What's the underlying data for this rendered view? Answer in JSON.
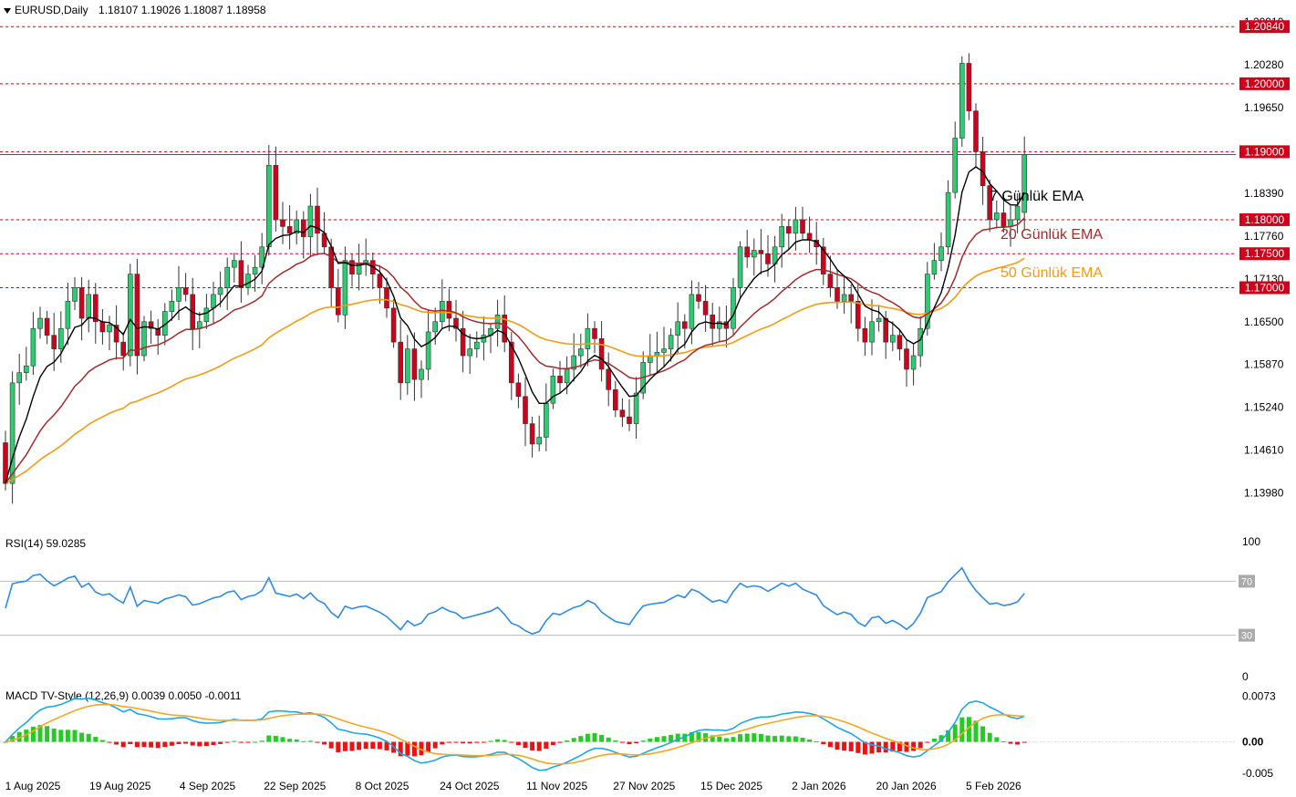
{
  "header": {
    "symbol": "EURUSD,Daily",
    "ohlc": "1.18107 1.19026 1.18087 1.18958",
    "rsi_title": "RSI(14) 59.0285",
    "macd_title": "MACD TV-Style (12,26,9) 0.0039 0.0050 -0.0011"
  },
  "colors": {
    "bull": "#2ECC71",
    "bear": "#D0021B",
    "ema7": "#000000",
    "ema20": "#A52A2A",
    "ema50": "#F39C12",
    "rsi": "#2E8BE6",
    "macd": "#1EA7E8",
    "signal": "#F5A623",
    "level": "#D0021B"
  },
  "chart_data": [
    {
      "type": "candlestick",
      "price_ticks": [
        "1.20910",
        "1.20280",
        "1.19650",
        "1.18390",
        "1.17760",
        "1.17130",
        "1.16500",
        "1.15870",
        "1.15240",
        "1.14610",
        "1.13980"
      ],
      "ylim": [
        1.1368,
        1.2091
      ],
      "x_tick_labels": [
        "1 Aug 2025",
        "19 Aug 2025",
        "4 Sep 2025",
        "22 Sep 2025",
        "8 Oct 2025",
        "24 Oct 2025",
        "11 Nov 2025",
        "27 Nov 2025",
        "15 Dec 2025",
        "2 Jan 2026",
        "20 Jan 2026",
        "5 Feb 2026"
      ],
      "level_labels": [
        "1.20840",
        "1.20000",
        "1.19000",
        "1.18000",
        "1.17500",
        "1.17000"
      ],
      "levels": [
        1.2084,
        1.2,
        1.19,
        1.18,
        1.175,
        1.17
      ],
      "current_price": 1.18958,
      "annotations": [
        "7 Günlük EMA",
        "20 Günlük EMA",
        "50 Günlük EMA"
      ],
      "closes": [
        1.1412,
        1.156,
        1.1575,
        1.1585,
        1.164,
        1.1655,
        1.163,
        1.161,
        1.164,
        1.168,
        1.17,
        1.1655,
        1.169,
        1.165,
        1.1635,
        1.1645,
        1.162,
        1.16,
        1.172,
        1.16,
        1.165,
        1.164,
        1.163,
        1.1665,
        1.168,
        1.17,
        1.169,
        1.164,
        1.165,
        1.167,
        1.169,
        1.17,
        1.173,
        1.174,
        1.17,
        1.172,
        1.173,
        1.176,
        1.188,
        1.18,
        1.179,
        1.178,
        1.18,
        1.1775,
        1.182,
        1.178,
        1.176,
        1.17,
        1.166,
        1.174,
        1.172,
        1.1735,
        1.174,
        1.172,
        1.17,
        1.167,
        1.162,
        1.156,
        1.161,
        1.1565,
        1.158,
        1.1635,
        1.165,
        1.168,
        1.1655,
        1.164,
        1.16,
        1.161,
        1.162,
        1.163,
        1.164,
        1.166,
        1.162,
        1.156,
        1.154,
        1.15,
        1.147,
        1.148,
        1.153,
        1.157,
        1.156,
        1.158,
        1.16,
        1.161,
        1.164,
        1.1625,
        1.158,
        1.155,
        1.152,
        1.151,
        1.15,
        1.1545,
        1.159,
        1.16,
        1.1605,
        1.161,
        1.163,
        1.165,
        1.164,
        1.169,
        1.168,
        1.166,
        1.164,
        1.165,
        1.164,
        1.17,
        1.176,
        1.1745,
        1.1755,
        1.175,
        1.1735,
        1.176,
        1.179,
        1.178,
        1.18,
        1.178,
        1.177,
        1.176,
        1.172,
        1.17,
        1.168,
        1.169,
        1.168,
        1.164,
        1.162,
        1.165,
        1.1655,
        1.162,
        1.163,
        1.161,
        1.158,
        1.16,
        1.164,
        1.172,
        1.174,
        1.176,
        1.184,
        1.192,
        1.203,
        1.196,
        1.19,
        1.185,
        1.18,
        1.181,
        1.179,
        1.18,
        1.182,
        1.18958
      ]
    },
    {
      "type": "line",
      "name": "RSI(14)",
      "ylim": [
        0,
        100
      ],
      "tick_labels": [
        "100",
        "70",
        "30",
        "0"
      ],
      "levels": [
        70,
        30
      ],
      "last_value": 59.0285
    },
    {
      "type": "bar",
      "name": "MACD TV-Style (12,26,9)",
      "ylim": [
        -0.005,
        0.0085
      ],
      "tick_labels": [
        "0.0073",
        "0.00",
        "-0.005"
      ],
      "last_values": {
        "macd": 0.0039,
        "signal": 0.005,
        "histogram": -0.0011
      }
    }
  ]
}
